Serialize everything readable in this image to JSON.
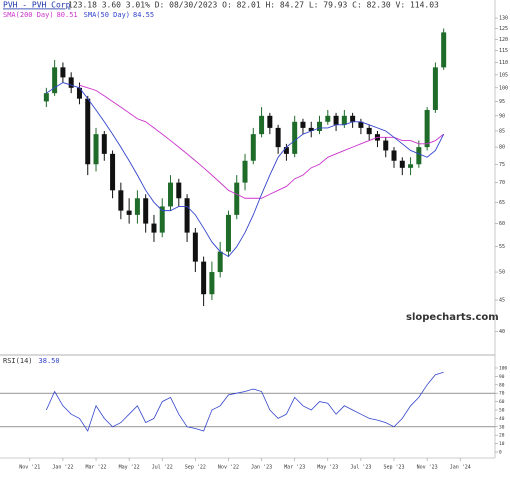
{
  "chart_data": {
    "type": "candlestick",
    "title": "PVH - PVH Corp",
    "quote": "123.18 3.60 3.01% D: 08/30/2023 O: 82.01 H: 84.27 L: 79.93 C: 82.30 V: 114.03",
    "watermark": "slopecharts.com",
    "x": [
      1,
      1.5,
      2,
      2.5,
      3,
      3.5,
      4,
      4.5,
      5,
      5.5,
      6,
      6.5,
      7,
      7.5,
      8,
      8.5,
      9,
      9.5,
      10,
      10.5,
      11,
      11.5,
      12,
      12.5,
      13,
      13.5,
      14,
      14.5,
      15,
      15.5,
      16,
      16.5,
      17,
      17.5,
      18,
      18.5,
      19,
      19.5,
      20,
      20.5,
      21,
      21.5,
      22,
      22.5,
      23,
      23.5,
      24,
      24.5,
      25
    ],
    "open": [
      95,
      98,
      108,
      104,
      100,
      96,
      75,
      84,
      78,
      68,
      63,
      62,
      66,
      60,
      58,
      64,
      70,
      66,
      58,
      52,
      46,
      50,
      54,
      62,
      70,
      76,
      84,
      90,
      86,
      80,
      78,
      88,
      86,
      85,
      88,
      90,
      87,
      90,
      88,
      86,
      84,
      82,
      79,
      76,
      74,
      75,
      80,
      92,
      108
    ],
    "high": [
      100,
      111,
      110,
      106,
      102,
      97,
      86,
      85,
      79,
      70,
      66,
      68,
      67,
      62,
      66,
      72,
      71,
      67,
      59,
      53,
      52,
      56,
      63,
      72,
      78,
      86,
      93,
      91,
      87,
      81,
      90,
      89,
      88,
      90,
      92,
      91,
      92,
      91,
      89,
      87,
      85,
      83,
      80,
      77,
      77,
      82,
      93,
      110,
      125
    ],
    "low": [
      93,
      97,
      102,
      98,
      94,
      72,
      73,
      76,
      66,
      61,
      60,
      60,
      58,
      56,
      57,
      63,
      64,
      56,
      50,
      44,
      45,
      49,
      53,
      61,
      68,
      75,
      83,
      84,
      78,
      76,
      77,
      84,
      83,
      84,
      87,
      85,
      86,
      86,
      84,
      82,
      80,
      77,
      74,
      72,
      72,
      74,
      79,
      91,
      107
    ],
    "close": [
      98,
      108,
      104,
      100,
      96,
      75,
      84,
      78,
      68,
      63,
      62,
      66,
      60,
      58,
      64,
      70,
      66,
      58,
      52,
      46,
      50,
      54,
      62,
      70,
      76,
      84,
      90,
      86,
      80,
      78,
      88,
      86,
      85,
      88,
      90,
      87,
      90,
      88,
      86,
      84,
      82,
      79,
      76,
      74,
      75,
      80,
      92,
      108,
      123.18
    ],
    "up_color": "#1f6b2a",
    "down_color": "#111111",
    "log_scale": true,
    "ylim": [
      38,
      133
    ],
    "yticks": [
      130,
      125,
      120,
      115,
      110,
      105,
      100,
      95,
      90,
      85,
      80,
      75,
      70,
      65,
      60,
      55,
      50,
      45,
      40
    ],
    "xlim": [
      -1.8,
      28.1
    ],
    "xticks": [
      {
        "value": 0,
        "label": "Nov '21"
      },
      {
        "value": 2,
        "label": "Jan '22"
      },
      {
        "value": 4,
        "label": "Mar '22"
      },
      {
        "value": 6,
        "label": "May '22"
      },
      {
        "value": 8,
        "label": "Jul '22"
      },
      {
        "value": 10,
        "label": "Sep '22"
      },
      {
        "value": 12,
        "label": "Nov '22"
      },
      {
        "value": 14,
        "label": "Jan '23"
      },
      {
        "value": 16,
        "label": "Mar '23"
      },
      {
        "value": 18,
        "label": "May '23"
      },
      {
        "value": 20,
        "label": "Jul '23"
      },
      {
        "value": 22,
        "label": "Sep '23"
      },
      {
        "value": 24,
        "label": "Nov '23"
      },
      {
        "value": 26,
        "label": "Jan '24"
      }
    ],
    "overlays": [
      {
        "name": "SMA(200 Day)",
        "last": 80.51,
        "color": "#cc33cc",
        "values": [
          null,
          null,
          null,
          null,
          101,
          100,
          99,
          97,
          95,
          93,
          91,
          89,
          88,
          86,
          84,
          82,
          80,
          78,
          76,
          74,
          72,
          70,
          68,
          67,
          66,
          66,
          66,
          67,
          68,
          69,
          71,
          72,
          74,
          75,
          77,
          78,
          79,
          80,
          81,
          82,
          83,
          83,
          83,
          82,
          82,
          81,
          81,
          82,
          84
        ]
      },
      {
        "name": "SMA(50 Day)",
        "last": 84.55,
        "color": "#3344cc",
        "values": [
          98,
          100,
          102,
          101,
          100,
          96,
          92,
          88,
          84,
          80,
          76,
          72,
          68,
          65,
          63,
          63,
          64,
          64,
          62,
          59,
          56,
          54,
          53,
          55,
          58,
          62,
          67,
          72,
          77,
          80,
          82,
          84,
          85,
          86,
          86,
          87,
          87,
          88,
          88,
          87,
          86,
          85,
          83,
          81,
          79,
          78,
          77,
          79,
          84
        ]
      }
    ],
    "rsi": {
      "name": "RSI(14)",
      "last": {
        "value": 38.5,
        "label": "38.50"
      },
      "color": "#3344cc",
      "ylim": [
        0,
        100
      ],
      "yticks": [
        100,
        90,
        80,
        70,
        60,
        50,
        40,
        30,
        20,
        10,
        0
      ],
      "levels": [
        70,
        30
      ],
      "values": [
        50,
        72,
        55,
        45,
        40,
        25,
        55,
        40,
        30,
        35,
        45,
        55,
        35,
        40,
        60,
        65,
        45,
        30,
        28,
        25,
        50,
        55,
        68,
        70,
        72,
        75,
        72,
        50,
        40,
        45,
        65,
        55,
        50,
        60,
        58,
        45,
        55,
        50,
        45,
        40,
        38,
        35,
        30,
        40,
        55,
        65,
        80,
        92,
        95
      ]
    }
  }
}
